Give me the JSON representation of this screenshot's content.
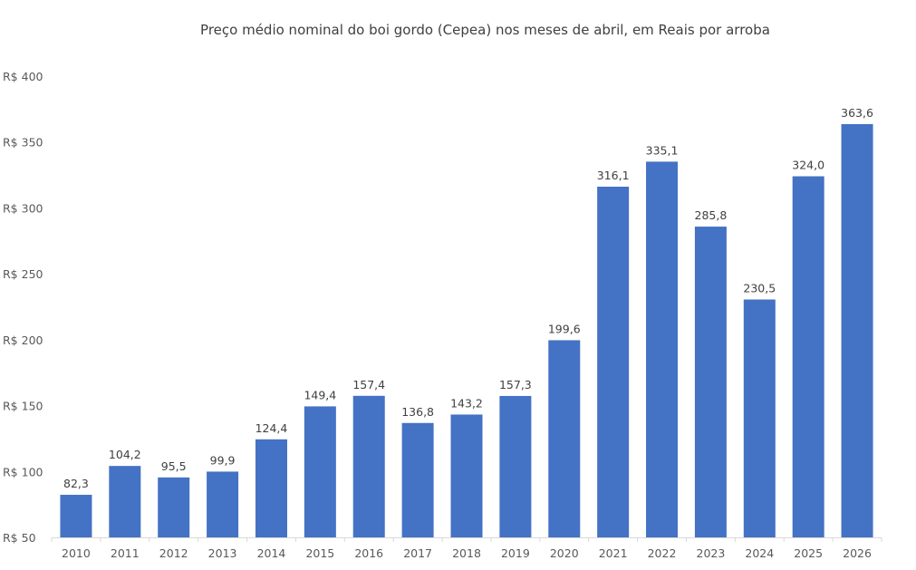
{
  "chart_data": {
    "type": "bar",
    "title": "Preço médio nominal do boi gordo (Cepea) nos meses de abril, em Reais por arroba",
    "categories": [
      "2010",
      "2011",
      "2012",
      "2013",
      "2014",
      "2015",
      "2016",
      "2017",
      "2018",
      "2019",
      "2020",
      "2021",
      "2022",
      "2023",
      "2024",
      "2025",
      "2026"
    ],
    "values": [
      82.3,
      104.2,
      95.5,
      99.9,
      124.4,
      149.4,
      157.4,
      136.8,
      143.2,
      157.3,
      199.6,
      316.1,
      335.1,
      285.8,
      230.5,
      324.0,
      363.6
    ],
    "data_labels": [
      "82,3",
      "104,2",
      "95,5",
      "99,9",
      "124,4",
      "149,4",
      "157,4",
      "136,8",
      "143,2",
      "157,3",
      "199,6",
      "316,1",
      "335,1",
      "285,8",
      "230,5",
      "324,0",
      "363,6"
    ],
    "ylim": [
      50,
      400
    ],
    "yticks": [
      50,
      100,
      150,
      200,
      250,
      300,
      350,
      400
    ],
    "ytick_labels": [
      "R$ 50",
      "R$ 100",
      "R$ 150",
      "R$ 200",
      "R$ 250",
      "R$ 300",
      "R$ 350",
      "R$ 400"
    ],
    "xlabel": "",
    "ylabel": "",
    "grid": false,
    "legend": "none",
    "bar_color": "#4472C4"
  }
}
